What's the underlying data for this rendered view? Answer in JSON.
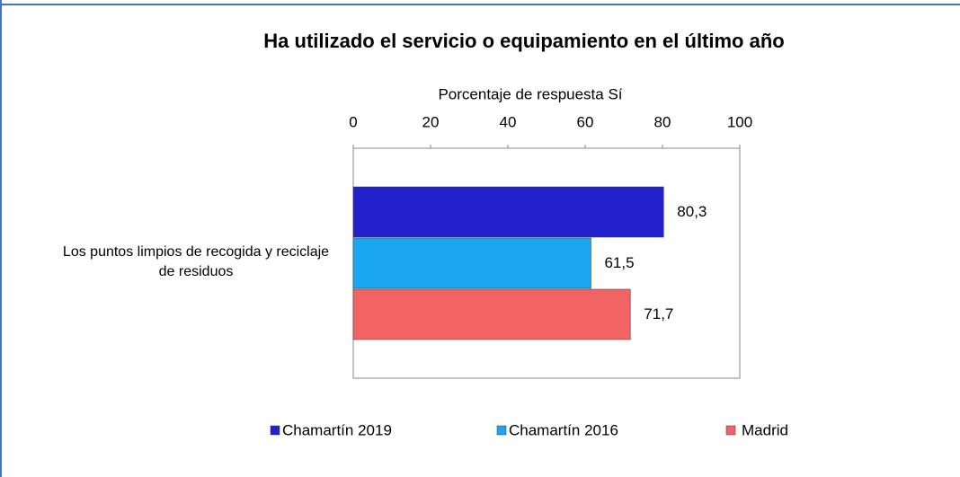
{
  "chart_data": {
    "type": "bar",
    "orientation": "horizontal",
    "title": "Ha utilizado el servicio o equipamiento en el último año",
    "x_label": "Porcentaje de respuesta Sí",
    "categories": [
      "Los puntos limpios de recogida y reciclaje de residuos"
    ],
    "series": [
      {
        "name": "Chamartín 2019",
        "color": "#2222cc",
        "values": [
          80.3
        ],
        "value_labels": [
          "80,3"
        ]
      },
      {
        "name": "Chamartín 2016",
        "color": "#1aa6f0",
        "values": [
          61.5
        ],
        "value_labels": [
          "61,5"
        ]
      },
      {
        "name": "Madrid",
        "color": "#f26464",
        "values": [
          71.7
        ],
        "value_labels": [
          "71,7"
        ]
      }
    ],
    "xlim": [
      0,
      100
    ],
    "xticks": [
      0,
      20,
      40,
      60,
      80,
      100
    ],
    "legend": "bottom"
  }
}
